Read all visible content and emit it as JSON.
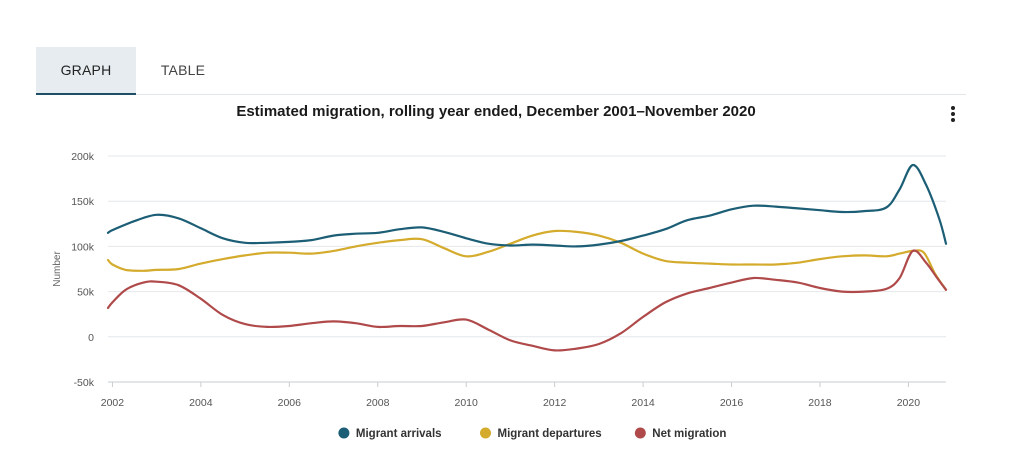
{
  "tabs": [
    {
      "label": "GRAPH",
      "active": true
    },
    {
      "label": "TABLE",
      "active": false
    }
  ],
  "menu_icon": "more-vertical-icon",
  "chart_data": {
    "type": "line",
    "title": "Estimated migration, rolling year ended, December 2001–November 2020",
    "xlabel": "",
    "ylabel": "Number",
    "xlim": [
      2001.9,
      2020.85
    ],
    "ylim": [
      -50000,
      200000
    ],
    "x_ticks": [
      2002,
      2004,
      2006,
      2008,
      2010,
      2012,
      2014,
      2016,
      2018,
      2020
    ],
    "x_tick_labels": [
      "2002",
      "2004",
      "2006",
      "2008",
      "2010",
      "2012",
      "2014",
      "2016",
      "2018",
      "2020"
    ],
    "y_ticks": [
      -50000,
      0,
      50000,
      100000,
      150000,
      200000
    ],
    "y_tick_labels": [
      "-50k",
      "0",
      "50k",
      "100k",
      "150k",
      "200k"
    ],
    "grid": "horizontal",
    "legend_position": "bottom",
    "series": [
      {
        "name": "Migrant arrivals",
        "color": "#1b5e75",
        "points": [
          [
            2001.9,
            115000
          ],
          [
            2002.0,
            118000
          ],
          [
            2002.5,
            128000
          ],
          [
            2003.0,
            135000
          ],
          [
            2003.5,
            131000
          ],
          [
            2004.0,
            120000
          ],
          [
            2004.5,
            109000
          ],
          [
            2005.0,
            104000
          ],
          [
            2005.5,
            104000
          ],
          [
            2006.0,
            105000
          ],
          [
            2006.5,
            107000
          ],
          [
            2007.0,
            112000
          ],
          [
            2007.5,
            114000
          ],
          [
            2008.0,
            115000
          ],
          [
            2008.5,
            119000
          ],
          [
            2009.0,
            121000
          ],
          [
            2009.5,
            116000
          ],
          [
            2010.0,
            109000
          ],
          [
            2010.5,
            103000
          ],
          [
            2011.0,
            101000
          ],
          [
            2011.5,
            102000
          ],
          [
            2012.0,
            101000
          ],
          [
            2012.5,
            100000
          ],
          [
            2013.0,
            102000
          ],
          [
            2013.5,
            106000
          ],
          [
            2014.0,
            112000
          ],
          [
            2014.5,
            119000
          ],
          [
            2015.0,
            129000
          ],
          [
            2015.5,
            134000
          ],
          [
            2016.0,
            141000
          ],
          [
            2016.5,
            145000
          ],
          [
            2017.0,
            144000
          ],
          [
            2017.5,
            142000
          ],
          [
            2018.0,
            140000
          ],
          [
            2018.5,
            138000
          ],
          [
            2019.0,
            139000
          ],
          [
            2019.5,
            143000
          ],
          [
            2019.8,
            163000
          ],
          [
            2020.1,
            190000
          ],
          [
            2020.4,
            168000
          ],
          [
            2020.7,
            130000
          ],
          [
            2020.85,
            103000
          ]
        ]
      },
      {
        "name": "Migrant departures",
        "color": "#d4ab2c",
        "points": [
          [
            2001.9,
            85000
          ],
          [
            2002.0,
            80000
          ],
          [
            2002.3,
            74000
          ],
          [
            2002.7,
            73000
          ],
          [
            2003.0,
            74000
          ],
          [
            2003.5,
            75000
          ],
          [
            2004.0,
            81000
          ],
          [
            2004.5,
            86000
          ],
          [
            2005.0,
            90000
          ],
          [
            2005.5,
            93000
          ],
          [
            2006.0,
            93000
          ],
          [
            2006.5,
            92000
          ],
          [
            2007.0,
            95000
          ],
          [
            2007.5,
            100000
          ],
          [
            2008.0,
            104000
          ],
          [
            2008.5,
            107000
          ],
          [
            2009.0,
            108000
          ],
          [
            2009.5,
            98000
          ],
          [
            2010.0,
            89000
          ],
          [
            2010.5,
            94000
          ],
          [
            2011.0,
            103000
          ],
          [
            2011.5,
            112000
          ],
          [
            2012.0,
            117000
          ],
          [
            2012.5,
            116000
          ],
          [
            2013.0,
            112000
          ],
          [
            2013.5,
            104000
          ],
          [
            2014.0,
            92000
          ],
          [
            2014.5,
            84000
          ],
          [
            2015.0,
            82000
          ],
          [
            2015.5,
            81000
          ],
          [
            2016.0,
            80000
          ],
          [
            2016.5,
            80000
          ],
          [
            2017.0,
            80000
          ],
          [
            2017.5,
            82000
          ],
          [
            2018.0,
            86000
          ],
          [
            2018.5,
            89000
          ],
          [
            2019.0,
            90000
          ],
          [
            2019.5,
            89000
          ],
          [
            2019.8,
            92000
          ],
          [
            2020.1,
            95000
          ],
          [
            2020.35,
            93000
          ],
          [
            2020.6,
            70000
          ],
          [
            2020.85,
            52000
          ]
        ]
      },
      {
        "name": "Net migration",
        "color": "#b04a4a",
        "points": [
          [
            2001.9,
            32000
          ],
          [
            2002.0,
            38000
          ],
          [
            2002.3,
            52000
          ],
          [
            2002.7,
            60000
          ],
          [
            2003.0,
            61000
          ],
          [
            2003.5,
            57000
          ],
          [
            2004.0,
            42000
          ],
          [
            2004.5,
            24000
          ],
          [
            2005.0,
            14000
          ],
          [
            2005.5,
            11000
          ],
          [
            2006.0,
            12000
          ],
          [
            2006.5,
            15000
          ],
          [
            2007.0,
            17000
          ],
          [
            2007.5,
            15000
          ],
          [
            2008.0,
            11000
          ],
          [
            2008.5,
            12000
          ],
          [
            2009.0,
            12000
          ],
          [
            2009.5,
            16000
          ],
          [
            2010.0,
            19000
          ],
          [
            2010.5,
            8000
          ],
          [
            2011.0,
            -4000
          ],
          [
            2011.5,
            -10000
          ],
          [
            2012.0,
            -15000
          ],
          [
            2012.5,
            -13000
          ],
          [
            2013.0,
            -8000
          ],
          [
            2013.5,
            4000
          ],
          [
            2014.0,
            22000
          ],
          [
            2014.5,
            38000
          ],
          [
            2015.0,
            48000
          ],
          [
            2015.5,
            54000
          ],
          [
            2016.0,
            60000
          ],
          [
            2016.5,
            65000
          ],
          [
            2017.0,
            63000
          ],
          [
            2017.5,
            60000
          ],
          [
            2018.0,
            54000
          ],
          [
            2018.5,
            50000
          ],
          [
            2019.0,
            50000
          ],
          [
            2019.5,
            53000
          ],
          [
            2019.8,
            65000
          ],
          [
            2020.1,
            95000
          ],
          [
            2020.4,
            82000
          ],
          [
            2020.65,
            65000
          ],
          [
            2020.85,
            52000
          ]
        ]
      }
    ]
  }
}
